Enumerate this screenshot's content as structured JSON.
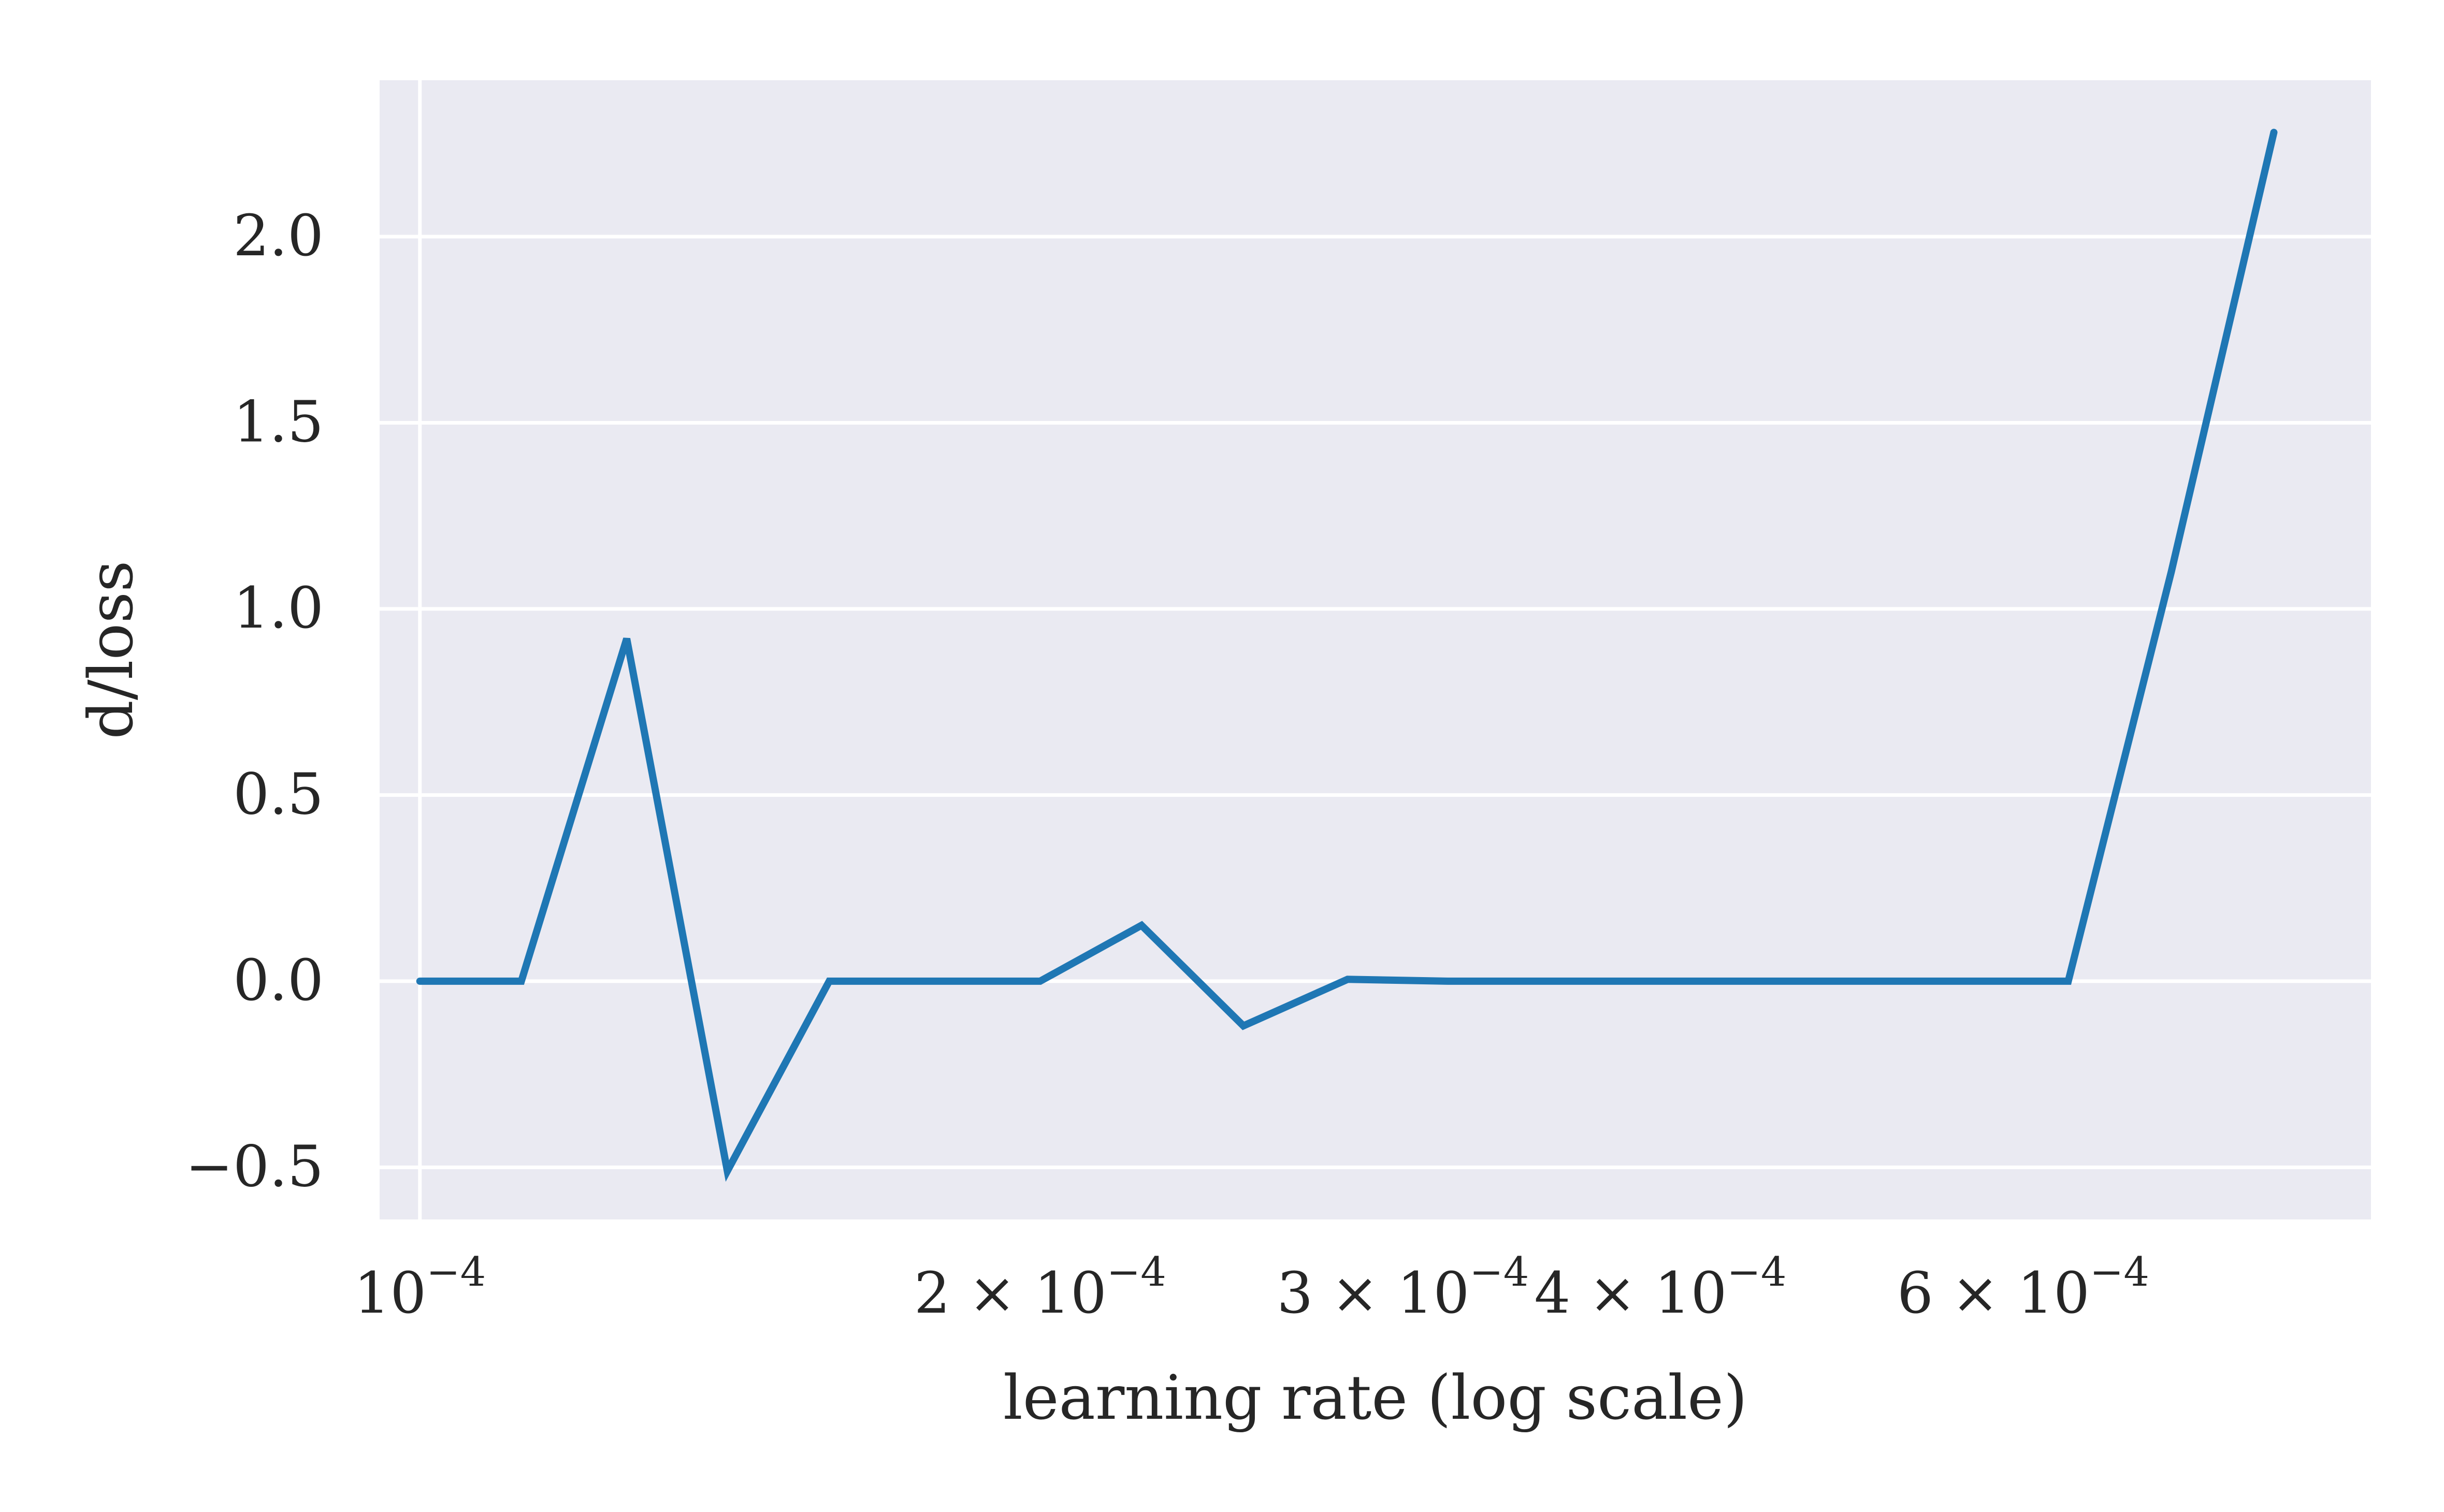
{
  "chart_data": {
    "type": "line",
    "title": "",
    "xlabel": "learning rate (log scale)",
    "ylabel": "d/loss",
    "xscale": "log",
    "xlim": [
      9.56e-05,
      0.000885
    ],
    "ylim": [
      -0.64,
      2.42
    ],
    "grid": true,
    "colors": {
      "background": "#eaeaf2",
      "grid": "#ffffff",
      "line": "#1f77b4",
      "text": "#262626"
    },
    "x_ticks": [
      {
        "value": 0.0001,
        "base": "10",
        "exp": "−4",
        "mult": ""
      },
      {
        "value": 0.0002,
        "base": "10",
        "exp": "−4",
        "mult": "2 × "
      },
      {
        "value": 0.0003,
        "base": "10",
        "exp": "−4",
        "mult": "3 × "
      },
      {
        "value": 0.0004,
        "base": "10",
        "exp": "−4",
        "mult": "4 × "
      },
      {
        "value": 0.0006,
        "base": "10",
        "exp": "−4",
        "mult": "6 × "
      }
    ],
    "y_ticks": [
      {
        "value": -0.5,
        "label": "−0.5"
      },
      {
        "value": 0.0,
        "label": "0.0"
      },
      {
        "value": 0.5,
        "label": "0.5"
      },
      {
        "value": 1.0,
        "label": "1.0"
      },
      {
        "value": 1.5,
        "label": "1.5"
      },
      {
        "value": 2.0,
        "label": "2.0"
      }
    ],
    "series": [
      {
        "x": [
          0.0001,
          0.000112,
          0.000126,
          0.000141,
          0.000158,
          0.000178,
          0.0002,
          0.000224,
          0.000251,
          0.000282,
          0.000316,
          0.000355,
          0.000398,
          0.000447,
          0.000501,
          0.000562,
          0.000631,
          0.000708,
          0.000794
        ],
        "y": [
          0.0,
          0.0,
          0.92,
          -0.51,
          0.0,
          0.0,
          0.0,
          0.15,
          -0.12,
          0.005,
          0.0,
          0.0,
          0.0,
          0.0,
          0.0,
          0.0,
          0.0,
          1.1,
          2.28
        ]
      }
    ]
  }
}
